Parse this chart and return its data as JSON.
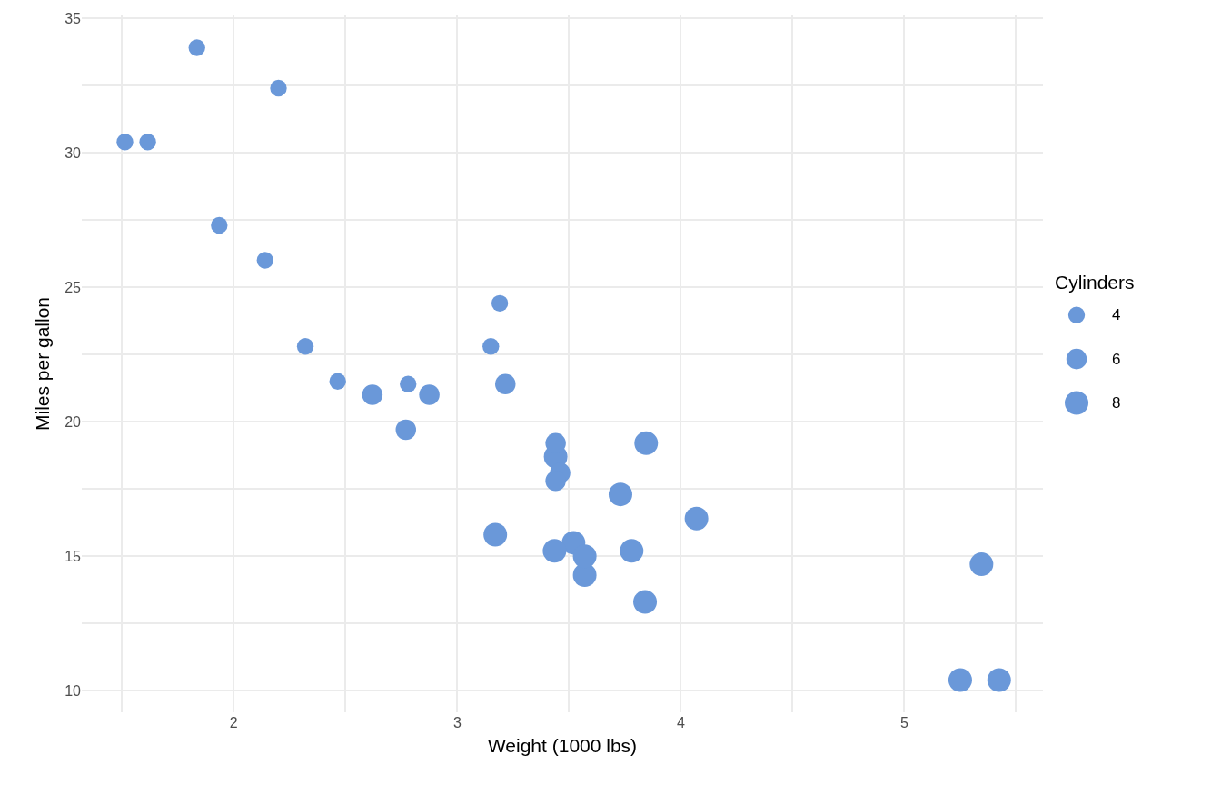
{
  "chart_data": {
    "type": "bubble",
    "xlabel": "Weight (1000 lbs)",
    "ylabel": "Miles per gallon",
    "legend_title": "Cylinders",
    "grid": true,
    "xlim": [
      1.32,
      5.62
    ],
    "ylim": [
      9.2,
      35.1
    ],
    "xticks": [
      {
        "value": 1.5,
        "label": null
      },
      2,
      {
        "value": 2.5,
        "label": null
      },
      3,
      {
        "value": 3.5,
        "label": null
      },
      4,
      {
        "value": 4.5,
        "label": null
      },
      5,
      {
        "value": 5.5,
        "label": null
      }
    ],
    "yticks": [
      10,
      {
        "value": 12.5,
        "label": null
      },
      15,
      {
        "value": 17.5,
        "label": null
      },
      20,
      {
        "value": 22.5,
        "label": null
      },
      25,
      {
        "value": 27.5,
        "label": null
      },
      30,
      {
        "value": 32.5,
        "label": null
      },
      35
    ],
    "size_legend": [
      4,
      6,
      8
    ],
    "series": [
      {
        "color": "#6a98d9",
        "x": [
          2.62,
          2.875,
          2.32,
          3.215,
          3.44,
          3.46,
          3.57,
          3.19,
          3.15,
          3.44,
          3.44,
          4.07,
          3.73,
          3.78,
          5.25,
          5.424,
          5.345,
          2.2,
          1.615,
          1.835,
          2.465,
          3.52,
          3.435,
          3.84,
          3.845,
          1.935,
          2.14,
          1.513,
          3.17,
          2.77,
          3.57,
          2.78
        ],
        "values": [
          21.0,
          21.0,
          22.8,
          21.4,
          18.7,
          18.1,
          14.3,
          24.4,
          22.8,
          19.2,
          17.8,
          16.4,
          17.3,
          15.2,
          10.4,
          10.4,
          14.7,
          32.4,
          30.4,
          33.9,
          21.5,
          15.5,
          15.2,
          13.3,
          19.2,
          27.3,
          26.0,
          30.4,
          15.8,
          19.7,
          15.0,
          21.4
        ],
        "sizes": [
          6,
          6,
          4,
          6,
          8,
          6,
          8,
          4,
          4,
          6,
          6,
          8,
          8,
          8,
          8,
          8,
          8,
          4,
          4,
          4,
          4,
          8,
          8,
          8,
          8,
          4,
          4,
          4,
          8,
          6,
          8,
          4
        ]
      }
    ]
  }
}
